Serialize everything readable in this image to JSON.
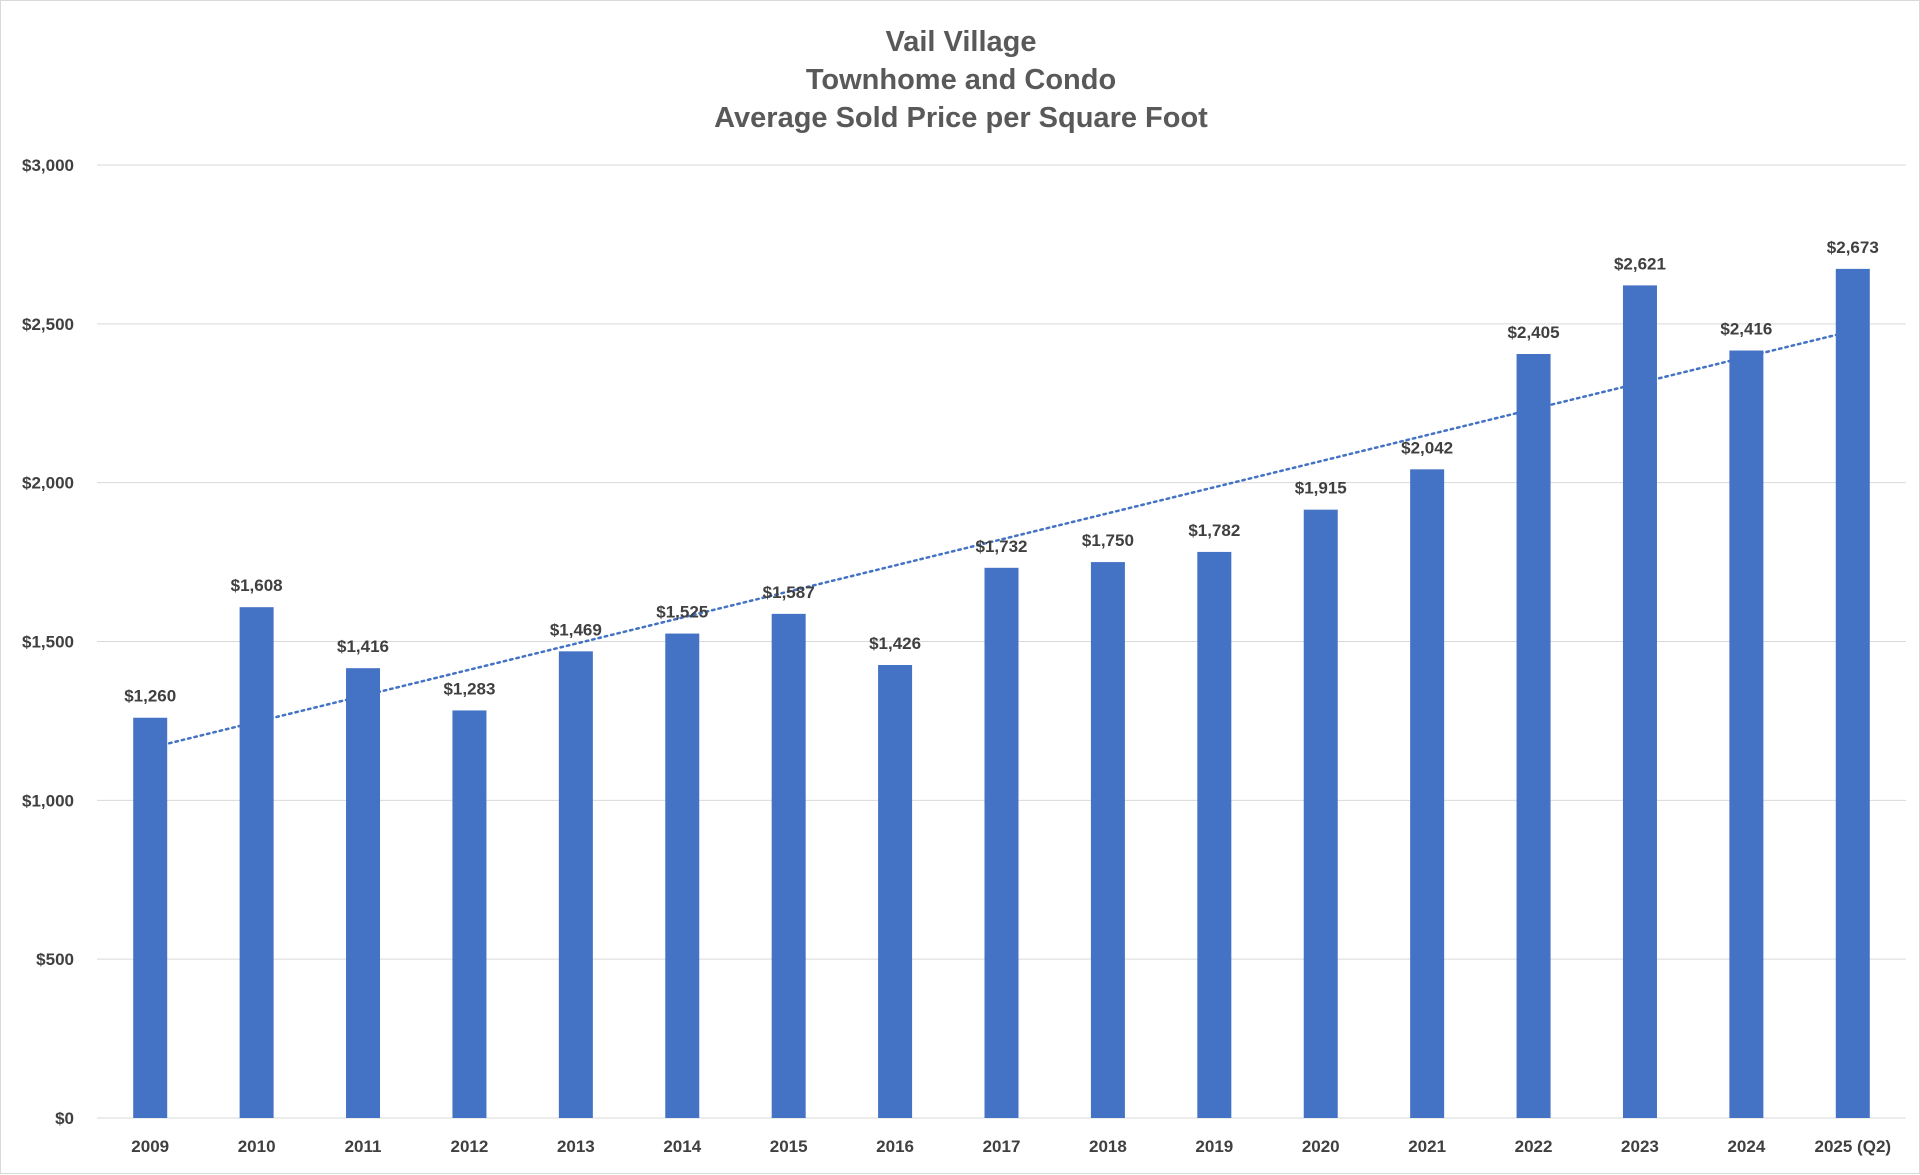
{
  "chart_data": {
    "type": "bar",
    "title": "Vail Village",
    "subtitle_lines": [
      "Townhome and Condo",
      "Average Sold Price per Square Foot"
    ],
    "categories": [
      "2009",
      "2010",
      "2011",
      "2012",
      "2013",
      "2014",
      "2015",
      "2016",
      "2017",
      "2018",
      "2019",
      "2020",
      "2021",
      "2022",
      "2023",
      "2024",
      "2025 (Q2)"
    ],
    "series": [
      {
        "values": [
          1260,
          1608,
          1416,
          1283,
          1469,
          1525,
          1587,
          1426,
          1732,
          1750,
          1782,
          1915,
          2042,
          2405,
          2621,
          2416,
          2673
        ],
        "labels": [
          "$1,260",
          "$1,608",
          "$1,416",
          "$1,283",
          "$1,469",
          "$1,525",
          "$1,587",
          "$1,426",
          "$1,732",
          "$1,750",
          "$1,782",
          "$1,915",
          "$2,042",
          "$2,405",
          "$2,621",
          "$2,416",
          "$2,673"
        ],
        "color": "#4472c4"
      }
    ],
    "trendline": {
      "type": "linear",
      "style": "dotted",
      "color": "#4472c4",
      "start_value": 1165,
      "end_value": 2478
    },
    "ylim": [
      0,
      3000
    ],
    "yticks": [
      0,
      500,
      1000,
      1500,
      2000,
      2500,
      3000
    ],
    "ytick_labels": [
      "$0",
      "$500",
      "$1,000",
      "$1,500",
      "$2,000",
      "$2,500",
      "$3,000"
    ],
    "grid": true,
    "gridline_color": "#d9d9d9",
    "xlabel": "",
    "ylabel": "",
    "legend": "none"
  }
}
